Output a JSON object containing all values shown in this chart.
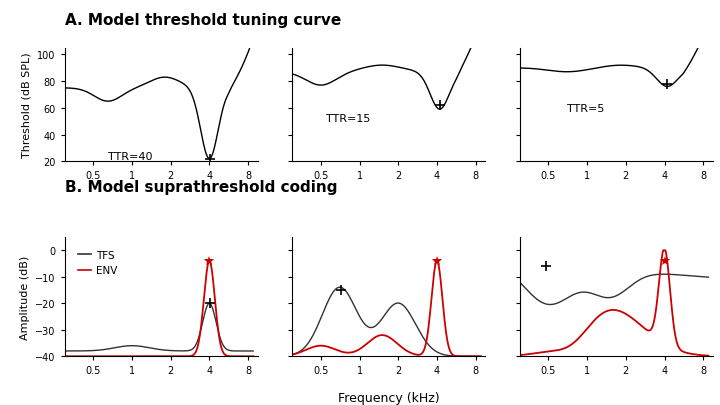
{
  "title_A": "A. Model threshold tuning curve",
  "title_B": "B. Model suprathreshold coding",
  "ylabel_A": "Threshold (dB SPL)",
  "ylabel_B": "Amplitude (dB)",
  "xlabel_B": "Frequency (kHz)",
  "xticks": [
    0.5,
    1,
    2,
    4,
    8
  ],
  "xtick_labels": [
    "0.5",
    "1",
    "2",
    "4",
    "8"
  ],
  "ylim_A": [
    20,
    105
  ],
  "yticks_A": [
    20,
    40,
    60,
    80,
    100
  ],
  "ylim_B": [
    -40,
    5
  ],
  "yticks_B": [
    -40,
    -30,
    -20,
    -10,
    0
  ],
  "ttr_labels": [
    "TTR=40",
    "TTR=15",
    "TTR=5"
  ],
  "background_color": "#ffffff",
  "legend_tfs": "TFS",
  "legend_env": "ENV",
  "tfs_color": "#333333",
  "env_color": "#cc0000",
  "title_fontsize": 11,
  "tick_fontsize": 7,
  "label_fontsize": 8
}
